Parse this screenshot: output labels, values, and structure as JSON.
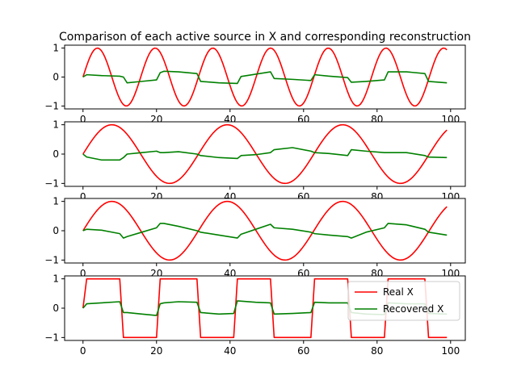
{
  "chart_data": {
    "type": "line",
    "title": "Comparison of each active source in X and corresponding reconstruction",
    "legend": {
      "placement": "lower-right of bottom panel",
      "entries": [
        {
          "label": "Real X",
          "color": "#ff0000"
        },
        {
          "label": "Recovered X",
          "color": "#008000"
        }
      ]
    },
    "panels": [
      {
        "x_ticks": [
          0,
          20,
          40,
          60,
          80,
          100
        ],
        "y_ticks": [
          -1,
          0,
          1
        ],
        "xlim": [
          -5,
          104
        ],
        "ylim": [
          -1.1,
          1.1
        ],
        "series": [
          {
            "name": "Real X",
            "color": "#ff0000",
            "function": "sin",
            "period": 15.7,
            "x_max": 99
          },
          {
            "name": "Recovered X",
            "color": "#008000",
            "points": [
              [
                0,
                0.0
              ],
              [
                1,
                0.08
              ],
              [
                5,
                0.05
              ],
              [
                10,
                0.03
              ],
              [
                11,
                0.0
              ],
              [
                12,
                -0.2
              ],
              [
                16,
                -0.15
              ],
              [
                20,
                -0.1
              ],
              [
                21,
                0.15
              ],
              [
                22,
                0.2
              ],
              [
                26,
                0.18
              ],
              [
                31,
                0.12
              ],
              [
                32,
                -0.15
              ],
              [
                37,
                -0.2
              ],
              [
                42,
                -0.22
              ],
              [
                43,
                0.02
              ],
              [
                47,
                0.1
              ],
              [
                51,
                0.18
              ],
              [
                52,
                -0.05
              ],
              [
                57,
                -0.08
              ],
              [
                62,
                -0.12
              ],
              [
                63,
                0.08
              ],
              [
                67,
                0.03
              ],
              [
                72,
                -0.02
              ],
              [
                73,
                -0.18
              ],
              [
                77,
                -0.15
              ],
              [
                82,
                -0.1
              ],
              [
                83,
                0.18
              ],
              [
                88,
                0.18
              ],
              [
                93,
                0.12
              ],
              [
                94,
                -0.15
              ],
              [
                99,
                -0.2
              ]
            ]
          }
        ]
      },
      {
        "x_ticks": [
          0,
          20,
          40,
          60,
          80,
          100
        ],
        "y_ticks": [
          -1,
          0,
          1
        ],
        "xlim": [
          -5,
          104
        ],
        "ylim": [
          -1.1,
          1.1
        ],
        "series": [
          {
            "name": "Real X",
            "color": "#ff0000",
            "function": "sin",
            "period": 31.4,
            "x_max": 99
          },
          {
            "name": "Recovered X",
            "color": "#008000",
            "points": [
              [
                0,
                0.0
              ],
              [
                1,
                -0.1
              ],
              [
                5,
                -0.2
              ],
              [
                10,
                -0.2
              ],
              [
                11,
                -0.12
              ],
              [
                12,
                0.0
              ],
              [
                16,
                0.05
              ],
              [
                20,
                0.1
              ],
              [
                21,
                0.05
              ],
              [
                22,
                0.05
              ],
              [
                26,
                0.08
              ],
              [
                31,
                0.0
              ],
              [
                32,
                -0.05
              ],
              [
                37,
                -0.12
              ],
              [
                42,
                -0.15
              ],
              [
                43,
                -0.05
              ],
              [
                47,
                -0.02
              ],
              [
                51,
                0.05
              ],
              [
                52,
                0.15
              ],
              [
                57,
                0.22
              ],
              [
                62,
                0.1
              ],
              [
                63,
                0.05
              ],
              [
                67,
                0.02
              ],
              [
                72,
                -0.05
              ],
              [
                73,
                0.15
              ],
              [
                77,
                0.1
              ],
              [
                82,
                0.05
              ],
              [
                83,
                0.05
              ],
              [
                88,
                0.05
              ],
              [
                93,
                -0.05
              ],
              [
                94,
                -0.1
              ],
              [
                99,
                -0.12
              ]
            ]
          }
        ]
      },
      {
        "x_ticks": [
          0,
          20,
          40,
          60,
          80,
          100
        ],
        "y_ticks": [
          -1,
          0,
          1
        ],
        "xlim": [
          -5,
          104
        ],
        "ylim": [
          -1.1,
          1.1
        ],
        "series": [
          {
            "name": "Real X",
            "color": "#ff0000",
            "function": "sin",
            "period": 31.4,
            "x_max": 99
          },
          {
            "name": "Recovered X",
            "color": "#008000",
            "points": [
              [
                0,
                0.0
              ],
              [
                1,
                0.05
              ],
              [
                5,
                0.02
              ],
              [
                10,
                -0.1
              ],
              [
                11,
                -0.25
              ],
              [
                12,
                -0.2
              ],
              [
                16,
                -0.05
              ],
              [
                20,
                0.1
              ],
              [
                21,
                0.25
              ],
              [
                22,
                0.25
              ],
              [
                26,
                0.15
              ],
              [
                31,
                0.0
              ],
              [
                32,
                -0.05
              ],
              [
                37,
                -0.15
              ],
              [
                42,
                -0.25
              ],
              [
                43,
                -0.12
              ],
              [
                47,
                0.05
              ],
              [
                51,
                0.22
              ],
              [
                52,
                0.1
              ],
              [
                57,
                0.05
              ],
              [
                62,
                -0.05
              ],
              [
                63,
                -0.1
              ],
              [
                67,
                -0.15
              ],
              [
                72,
                -0.2
              ],
              [
                73,
                -0.25
              ],
              [
                77,
                -0.05
              ],
              [
                82,
                0.1
              ],
              [
                83,
                0.25
              ],
              [
                88,
                0.2
              ],
              [
                93,
                0.05
              ],
              [
                94,
                -0.05
              ],
              [
                99,
                -0.15
              ]
            ]
          }
        ]
      },
      {
        "x_ticks": [
          0,
          20,
          40,
          60,
          80,
          100
        ],
        "y_ticks": [
          -1,
          0,
          1
        ],
        "xlim": [
          -5,
          104
        ],
        "ylim": [
          -1.1,
          1.1
        ],
        "series": [
          {
            "name": "Real X",
            "color": "#ff0000",
            "points": [
              [
                0,
                0
              ],
              [
                1,
                1
              ],
              [
                10,
                1
              ],
              [
                11,
                -1
              ],
              [
                20,
                -1
              ],
              [
                21,
                1
              ],
              [
                31,
                1
              ],
              [
                32,
                -1
              ],
              [
                41,
                -1
              ],
              [
                42,
                1
              ],
              [
                51,
                1
              ],
              [
                52,
                -1
              ],
              [
                62,
                -1
              ],
              [
                63,
                1
              ],
              [
                72,
                1
              ],
              [
                73,
                -1
              ],
              [
                82,
                -1
              ],
              [
                83,
                1
              ],
              [
                93,
                1
              ],
              [
                94,
                -1
              ],
              [
                99,
                -1
              ]
            ]
          },
          {
            "name": "Recovered X",
            "color": "#008000",
            "points": [
              [
                0,
                0.0
              ],
              [
                1,
                0.15
              ],
              [
                5,
                0.18
              ],
              [
                10,
                0.22
              ],
              [
                11,
                -0.15
              ],
              [
                12,
                -0.15
              ],
              [
                16,
                -0.2
              ],
              [
                20,
                -0.25
              ],
              [
                21,
                0.15
              ],
              [
                22,
                0.18
              ],
              [
                26,
                0.22
              ],
              [
                31,
                0.2
              ],
              [
                32,
                -0.15
              ],
              [
                37,
                -0.2
              ],
              [
                41,
                -0.18
              ],
              [
                42,
                0.25
              ],
              [
                47,
                0.2
              ],
              [
                51,
                0.18
              ],
              [
                52,
                -0.2
              ],
              [
                57,
                -0.18
              ],
              [
                62,
                -0.15
              ],
              [
                63,
                0.2
              ],
              [
                67,
                0.18
              ],
              [
                72,
                0.18
              ],
              [
                73,
                -0.15
              ],
              [
                77,
                -0.2
              ],
              [
                82,
                -0.22
              ],
              [
                83,
                0.18
              ],
              [
                88,
                0.15
              ],
              [
                93,
                0.15
              ],
              [
                94,
                -0.18
              ],
              [
                99,
                -0.2
              ]
            ]
          }
        ]
      }
    ]
  }
}
